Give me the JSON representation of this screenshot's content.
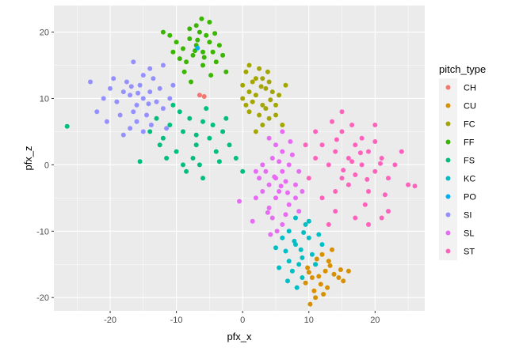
{
  "chart_data": {
    "type": "scatter",
    "xlabel": "pfx_x",
    "ylabel": "pfx_z",
    "xlim": [
      -28.5,
      27.5
    ],
    "ylim": [
      -22,
      24
    ],
    "xticks": [
      -20,
      -10,
      0,
      10,
      20
    ],
    "yticks": [
      -20,
      -10,
      0,
      10,
      20
    ],
    "xtick_labels": [
      "-20",
      "-10",
      "0",
      "10",
      "20"
    ],
    "ytick_labels": [
      "-20",
      "-10",
      "0",
      "10",
      "20"
    ],
    "grid": true,
    "panel_background": "#ebebeb",
    "legend": {
      "title": "pitch_type",
      "position": "right"
    },
    "series": [
      {
        "name": "CH",
        "color": "#F8766D",
        "points": [
          [
            -6.5,
            10.5
          ],
          [
            -5.8,
            10.3
          ]
        ]
      },
      {
        "name": "CU",
        "color": "#D89000",
        "points": [
          [
            11,
            -15
          ],
          [
            12.5,
            -16
          ],
          [
            10.5,
            -17
          ],
          [
            13,
            -14.5
          ],
          [
            11.8,
            -18
          ],
          [
            9.8,
            -15.5
          ],
          [
            12,
            -13.5
          ],
          [
            13.8,
            -16.5
          ],
          [
            10.8,
            -19
          ],
          [
            14.5,
            -17
          ],
          [
            11.5,
            -16.8
          ],
          [
            12.8,
            -18.5
          ],
          [
            9.5,
            -17.8
          ],
          [
            13.2,
            -15.2
          ],
          [
            10.2,
            -21
          ],
          [
            14.8,
            -15.8
          ],
          [
            11.2,
            -14.2
          ],
          [
            12.2,
            -19.5
          ],
          [
            15.2,
            -17.5
          ],
          [
            10,
            -16.2
          ],
          [
            13.5,
            -12.8
          ],
          [
            11,
            -20
          ],
          [
            16,
            -16
          ]
        ]
      },
      {
        "name": "FC",
        "color": "#A3A500",
        "points": [
          [
            1,
            11
          ],
          [
            3,
            9
          ],
          [
            2,
            13
          ],
          [
            4,
            7
          ],
          [
            0,
            12
          ],
          [
            3.5,
            11.5
          ],
          [
            1.5,
            9.5
          ],
          [
            2.5,
            7.5
          ],
          [
            5,
            9
          ],
          [
            0.5,
            14
          ],
          [
            3,
            13
          ],
          [
            4.5,
            11
          ],
          [
            1,
            8
          ],
          [
            2,
            10.5
          ],
          [
            6,
            6
          ],
          [
            2.5,
            14.5
          ],
          [
            3.5,
            8.5
          ],
          [
            1.5,
            12.5
          ],
          [
            5.5,
            10.5
          ],
          [
            0,
            10
          ],
          [
            2,
            5
          ],
          [
            4,
            12.5
          ],
          [
            3,
            6
          ],
          [
            1,
            15
          ],
          [
            5,
            7.5
          ],
          [
            6.5,
            12
          ],
          [
            0.5,
            9
          ],
          [
            2.8,
            11.8
          ],
          [
            4.2,
            9.8
          ],
          [
            3.8,
            14
          ]
        ]
      },
      {
        "name": "FF",
        "color": "#39B600",
        "points": [
          [
            -7,
            18
          ],
          [
            -6,
            17
          ],
          [
            -8,
            19
          ],
          [
            -5,
            18.5
          ],
          [
            -7.5,
            16.5
          ],
          [
            -6.5,
            20
          ],
          [
            -9,
            17.5
          ],
          [
            -4.5,
            17
          ],
          [
            -8.5,
            15.5
          ],
          [
            -5.5,
            19.5
          ],
          [
            -7,
            21
          ],
          [
            -10,
            18.5
          ],
          [
            -6,
            15
          ],
          [
            -3.5,
            18
          ],
          [
            -4,
            15.5
          ],
          [
            -9.5,
            16
          ],
          [
            -5,
            21.5
          ],
          [
            -8,
            20.5
          ],
          [
            -6.8,
            18.8
          ],
          [
            -7.2,
            17.2
          ],
          [
            -5.8,
            16.2
          ],
          [
            -10.5,
            17
          ],
          [
            -3,
            16.5
          ],
          [
            -4.2,
            19.8
          ],
          [
            -11,
            19.5
          ],
          [
            -2.5,
            14
          ],
          [
            -12,
            20
          ],
          [
            -6.2,
            22
          ],
          [
            -8.8,
            14
          ],
          [
            -7.8,
            12.5
          ],
          [
            -4.8,
            13.5
          ]
        ]
      },
      {
        "name": "FS",
        "color": "#00BF7D",
        "points": [
          [
            -9,
            5
          ],
          [
            -7,
            3
          ],
          [
            -11,
            6
          ],
          [
            -5,
            4
          ],
          [
            -8,
            7
          ],
          [
            -10,
            2
          ],
          [
            -6,
            6.5
          ],
          [
            -4,
            2
          ],
          [
            -12,
            4
          ],
          [
            -7.5,
            1
          ],
          [
            -9.5,
            8
          ],
          [
            -3,
            5
          ],
          [
            -6.5,
            0
          ],
          [
            -13,
            7
          ],
          [
            -2,
            3
          ],
          [
            -8.5,
            -1
          ],
          [
            -5.5,
            8.5
          ],
          [
            -11.5,
            1
          ],
          [
            -4.5,
            6
          ],
          [
            -10.5,
            9
          ],
          [
            -7,
            4.5
          ],
          [
            -3.5,
            0.5
          ],
          [
            -14,
            5
          ],
          [
            -1,
            1
          ],
          [
            -6,
            -2
          ],
          [
            -12.5,
            3
          ],
          [
            -2.5,
            7
          ],
          [
            -9,
            0
          ],
          [
            -15.5,
            0.5
          ],
          [
            -26.5,
            5.8
          ],
          [
            0,
            -1
          ]
        ]
      },
      {
        "name": "KC",
        "color": "#00BFC4",
        "points": [
          [
            8,
            -12
          ],
          [
            9,
            -14
          ],
          [
            7,
            -10
          ],
          [
            10,
            -11
          ],
          [
            8.5,
            -15
          ],
          [
            6.5,
            -13
          ],
          [
            9.5,
            -9
          ],
          [
            7.5,
            -16
          ],
          [
            10.5,
            -13.5
          ],
          [
            6,
            -11
          ],
          [
            8,
            -8
          ],
          [
            9,
            -17
          ],
          [
            7,
            -14.5
          ],
          [
            11,
            -15
          ],
          [
            5.5,
            -15.5
          ],
          [
            10,
            -8.5
          ],
          [
            8.8,
            -12.8
          ],
          [
            7.8,
            -11.5
          ],
          [
            12,
            -12
          ],
          [
            6.8,
            -17.5
          ],
          [
            9.2,
            -10.2
          ],
          [
            5,
            -12.5
          ],
          [
            11.5,
            -10.5
          ],
          [
            8.2,
            -18.5
          ]
        ]
      },
      {
        "name": "PO",
        "color": "#00B0F6",
        "points": [
          [
            -6.8,
            17.6
          ]
        ]
      },
      {
        "name": "SI",
        "color": "#9590FF",
        "points": [
          [
            -15,
            10
          ],
          [
            -16,
            9
          ],
          [
            -14,
            11
          ],
          [
            -17,
            10.5
          ],
          [
            -15.5,
            12
          ],
          [
            -13,
            9.5
          ],
          [
            -16.5,
            8
          ],
          [
            -18,
            11
          ],
          [
            -14.5,
            7.5
          ],
          [
            -12.5,
            11.5
          ],
          [
            -19,
            9.5
          ],
          [
            -15,
            13.5
          ],
          [
            -17.5,
            12.5
          ],
          [
            -13.5,
            13
          ],
          [
            -16,
            6.5
          ],
          [
            -20,
            11.5
          ],
          [
            -12,
            8.5
          ],
          [
            -18.5,
            7.5
          ],
          [
            -14,
            14.5
          ],
          [
            -21,
            10
          ],
          [
            -11,
            10
          ],
          [
            -15.8,
            10.8
          ],
          [
            -14.2,
            9.2
          ],
          [
            -16.8,
            11.8
          ],
          [
            -13.8,
            6
          ],
          [
            -19.5,
            13
          ],
          [
            -17,
            5.5
          ],
          [
            -22,
            8
          ],
          [
            -10.5,
            12
          ],
          [
            -20.5,
            6.5
          ],
          [
            -12,
            15
          ],
          [
            -16.5,
            15.5
          ],
          [
            -18,
            4.5
          ],
          [
            -23,
            12.5
          ],
          [
            -15,
            5
          ],
          [
            -11.5,
            5.5
          ]
        ]
      },
      {
        "name": "SL",
        "color": "#E76BF3",
        "points": [
          [
            5,
            -2
          ],
          [
            6,
            -1
          ],
          [
            4,
            -3
          ],
          [
            7,
            0
          ],
          [
            5.5,
            -4
          ],
          [
            6.5,
            -2.5
          ],
          [
            3.5,
            -1
          ],
          [
            4.5,
            1
          ],
          [
            8,
            -3
          ],
          [
            5,
            -5
          ],
          [
            6,
            2
          ],
          [
            3,
            -4
          ],
          [
            7,
            -6
          ],
          [
            4,
            -6.5
          ],
          [
            5.5,
            0.5
          ],
          [
            8.5,
            -1
          ],
          [
            2.5,
            -2
          ],
          [
            6.5,
            -7.5
          ],
          [
            4.5,
            -8
          ],
          [
            7.5,
            1.5
          ],
          [
            5,
            3
          ],
          [
            3,
            0
          ],
          [
            6,
            -9
          ],
          [
            8,
            -5
          ],
          [
            2,
            -5
          ],
          [
            5.8,
            -3.2
          ],
          [
            4.8,
            -1.8
          ],
          [
            6.8,
            -4.2
          ],
          [
            3.8,
            -7.2
          ],
          [
            7.2,
            3.5
          ],
          [
            5.2,
            -10
          ],
          [
            8.5,
            -7
          ],
          [
            2,
            -1
          ],
          [
            4,
            4
          ],
          [
            -0.5,
            -5.5
          ],
          [
            9,
            -4
          ],
          [
            1.5,
            -8.5
          ],
          [
            6,
            5
          ],
          [
            4.2,
            -10.5
          ]
        ]
      },
      {
        "name": "ST",
        "color": "#FF62BC",
        "points": [
          [
            16,
            1
          ],
          [
            18,
            0
          ],
          [
            14,
            2
          ],
          [
            20,
            -1
          ],
          [
            17,
            3
          ],
          [
            15,
            -2
          ],
          [
            19,
            2
          ],
          [
            13,
            0
          ],
          [
            21,
            1
          ],
          [
            16,
            -3
          ],
          [
            18,
            4
          ],
          [
            12,
            3
          ],
          [
            22,
            -2
          ],
          [
            17,
            -1.5
          ],
          [
            15,
            5
          ],
          [
            20,
            3.5
          ],
          [
            14,
            -4
          ],
          [
            19,
            -4
          ],
          [
            11,
            1
          ],
          [
            23,
            0
          ],
          [
            16.5,
            6
          ],
          [
            18.5,
            -6
          ],
          [
            13.5,
            6.5
          ],
          [
            21.5,
            -4.5
          ],
          [
            10,
            -2
          ],
          [
            24,
            2
          ],
          [
            12,
            -5
          ],
          [
            20,
            6
          ],
          [
            17,
            -8
          ],
          [
            15,
            8
          ],
          [
            11,
            5
          ],
          [
            22,
            -7
          ],
          [
            14,
            -7
          ],
          [
            25,
            -3
          ],
          [
            9.5,
            3
          ],
          [
            19,
            -9
          ],
          [
            13,
            -9
          ],
          [
            16.5,
            0.5
          ],
          [
            17.8,
            1.8
          ],
          [
            15.2,
            -0.8
          ],
          [
            18.8,
            -2.2
          ],
          [
            14.2,
            3.8
          ],
          [
            20.8,
            0.2
          ],
          [
            26,
            -3.2
          ],
          [
            21,
            -8
          ]
        ]
      }
    ]
  }
}
